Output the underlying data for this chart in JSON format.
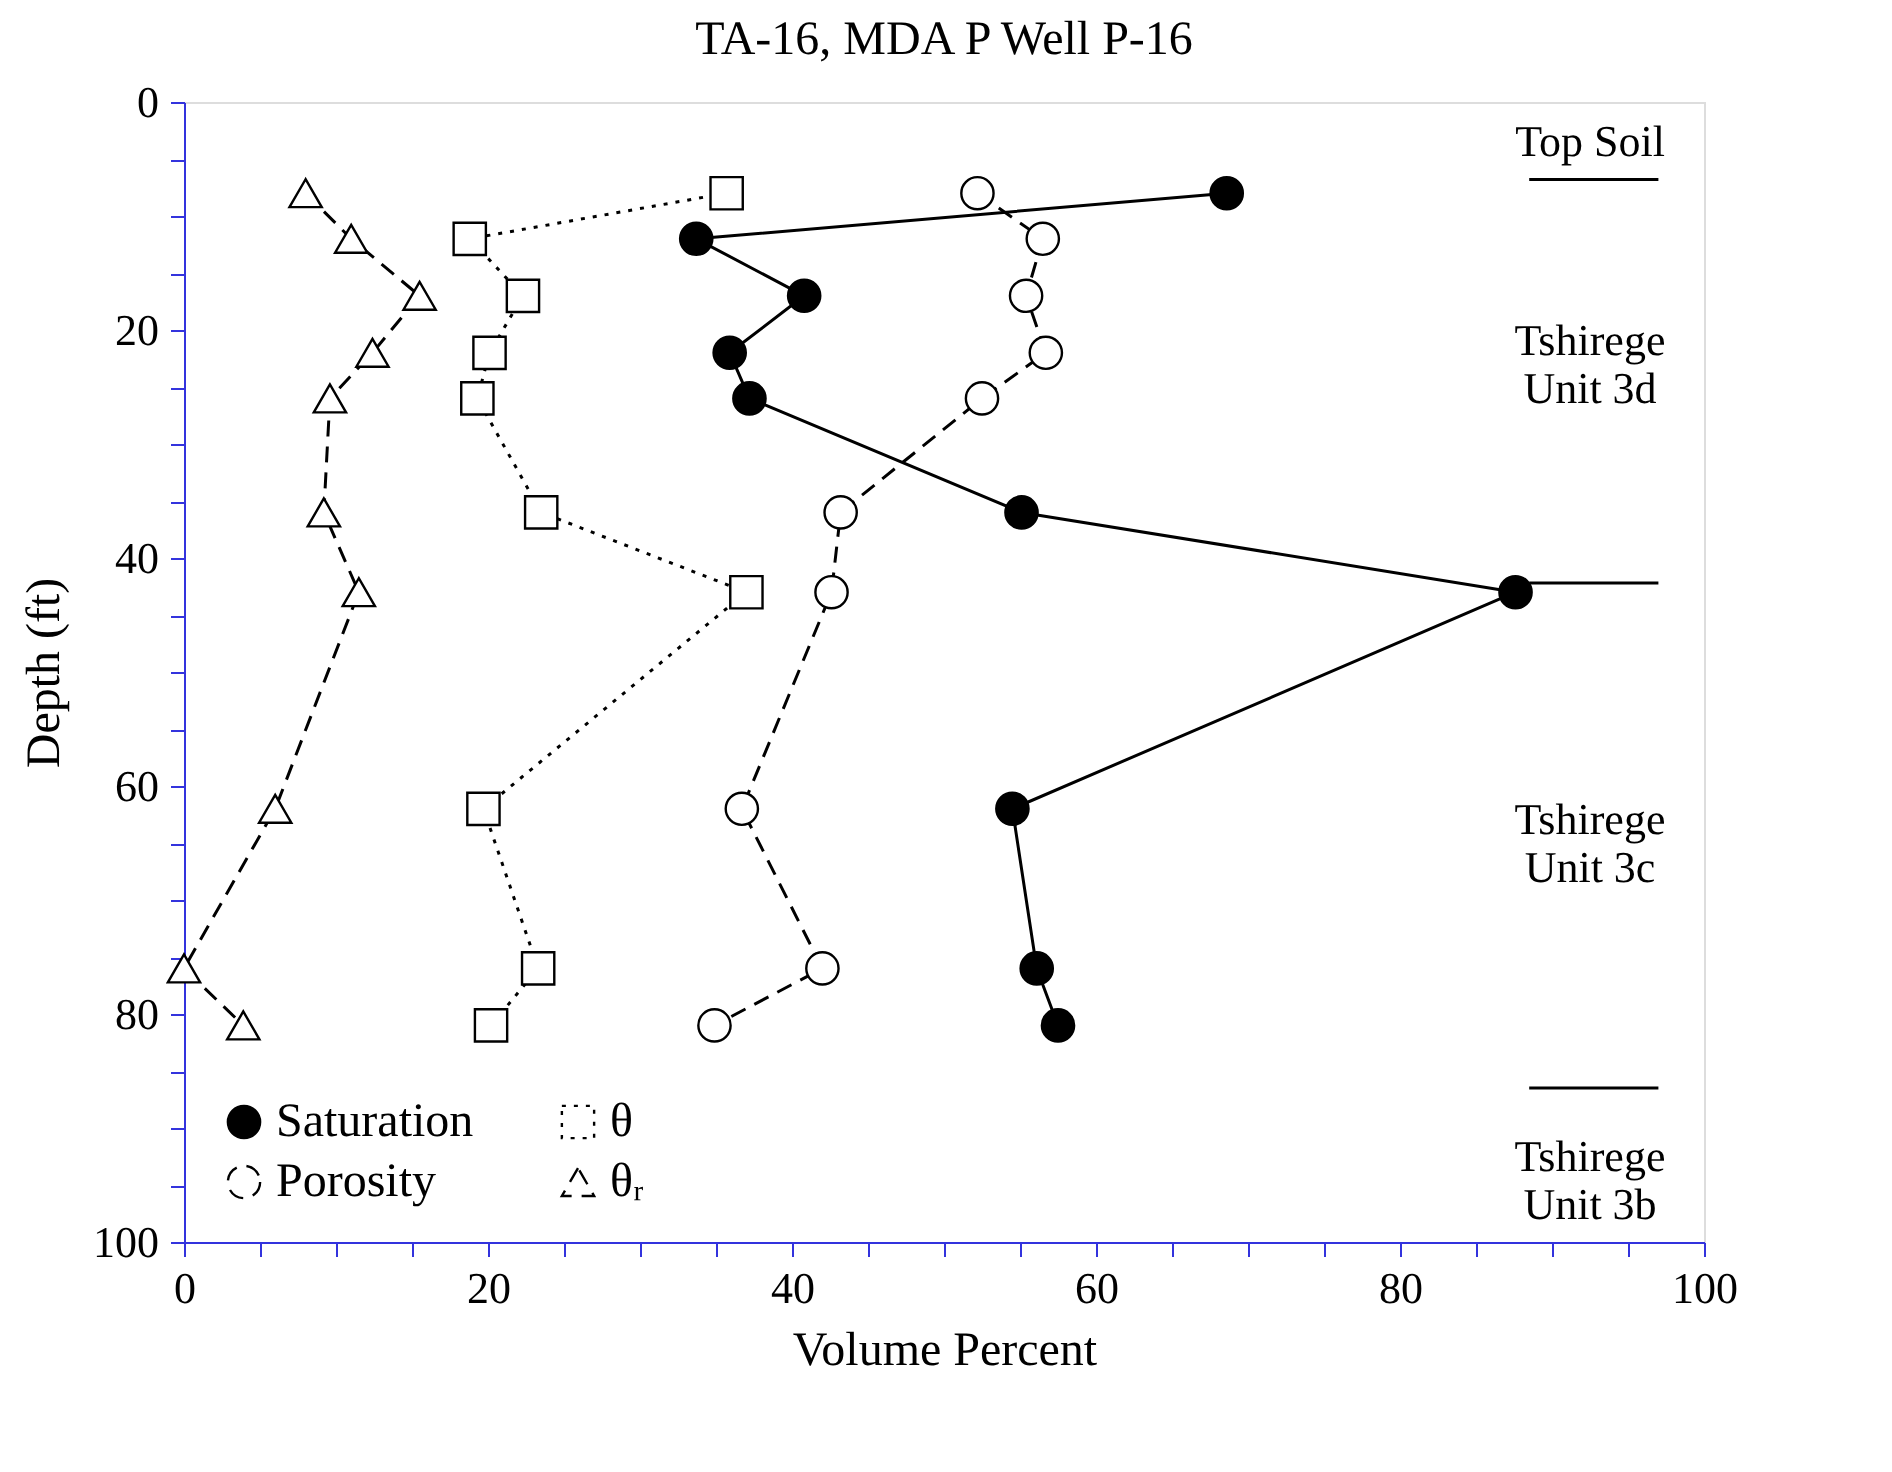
{
  "chart_data": {
    "type": "line",
    "title": "TA-16, MDA P Well P-16",
    "xlabel": "Volume Percent",
    "ylabel": "Depth (ft)",
    "xlim": [
      0,
      100
    ],
    "ylim": [
      100,
      0
    ],
    "xticks": [
      0,
      {
        "value": 5,
        "label": null
      },
      {
        "value": 10,
        "label": null
      },
      {
        "value": 15,
        "label": null
      },
      20,
      {
        "value": 25,
        "label": null
      },
      {
        "value": 30,
        "label": null
      },
      {
        "value": 35,
        "label": null
      },
      40,
      {
        "value": 45,
        "label": null
      },
      {
        "value": 50,
        "label": null
      },
      {
        "value": 55,
        "label": null
      },
      60,
      {
        "value": 65,
        "label": null
      },
      {
        "value": 70,
        "label": null
      },
      {
        "value": 75,
        "label": null
      },
      80,
      {
        "value": 85,
        "label": null
      },
      {
        "value": 90,
        "label": null
      },
      {
        "value": 95,
        "label": null
      },
      100
    ],
    "yticks": [
      0,
      {
        "value": 5,
        "label": null
      },
      {
        "value": 10,
        "label": null
      },
      {
        "value": 15,
        "label": null
      },
      20,
      {
        "value": 25,
        "label": null
      },
      {
        "value": 30,
        "label": null
      },
      {
        "value": 35,
        "label": null
      },
      40,
      {
        "value": 45,
        "label": null
      },
      {
        "value": 50,
        "label": null
      },
      {
        "value": 55,
        "label": null
      },
      60,
      {
        "value": 65,
        "label": null
      },
      {
        "value": 70,
        "label": null
      },
      {
        "value": 75,
        "label": null
      },
      80,
      {
        "value": 85,
        "label": null
      },
      {
        "value": 90,
        "label": null
      },
      {
        "value": 95,
        "label": null
      },
      100
    ],
    "grid": false,
    "legend": "bottom left",
    "series": [
      {
        "name": "Saturation",
        "color": "#000000",
        "marker": "circle",
        "line_style": "solid",
        "x": [
          68.6,
          33.7,
          40.8,
          35.9,
          37.2,
          55.1,
          87.6,
          54.5,
          56.1,
          57.5
        ],
        "values": [
          8,
          12,
          17,
          22,
          26,
          36,
          43,
          62,
          76,
          81
        ]
      },
      {
        "name": "Porosity",
        "color": "#000000",
        "marker": "circle",
        "line_style": "dashed",
        "x": [
          52.2,
          56.5,
          55.4,
          56.7,
          52.5,
          43.2,
          42.6,
          36.7,
          42,
          34.9
        ],
        "values": [
          8,
          12,
          17,
          22,
          26,
          36,
          43,
          62,
          76,
          81
        ]
      },
      {
        "name": "θ",
        "color": "#000000",
        "marker": "square",
        "line_style": "dotted",
        "x": [
          35.7,
          18.8,
          22.3,
          20.1,
          19.3,
          23.5,
          37,
          19.7,
          23.3,
          20.2
        ],
        "values": [
          8,
          12,
          17,
          22,
          26,
          36,
          43,
          62,
          76,
          81
        ]
      },
      {
        "name": "θᵣ",
        "color": "#000000",
        "marker": "triangle",
        "line_style": "dashed",
        "x": [
          8,
          11,
          15.5,
          12.4,
          9.6,
          9.2,
          11.5,
          6,
          0,
          3.9
        ],
        "values": [
          8,
          12,
          17,
          22,
          26,
          36,
          43,
          62,
          76,
          81
        ]
      }
    ],
    "ref_lines": [
      {
        "axis": "y",
        "value": 6.8
      },
      {
        "axis": "y",
        "value": 42.2
      },
      {
        "axis": "y",
        "value": 86.5
      }
    ],
    "annotations": [
      "Top Soil",
      "Tshirege\nUnit 3d",
      "Tshirege\nUnit 3c",
      "Tshirege\nUnit 3b"
    ]
  }
}
